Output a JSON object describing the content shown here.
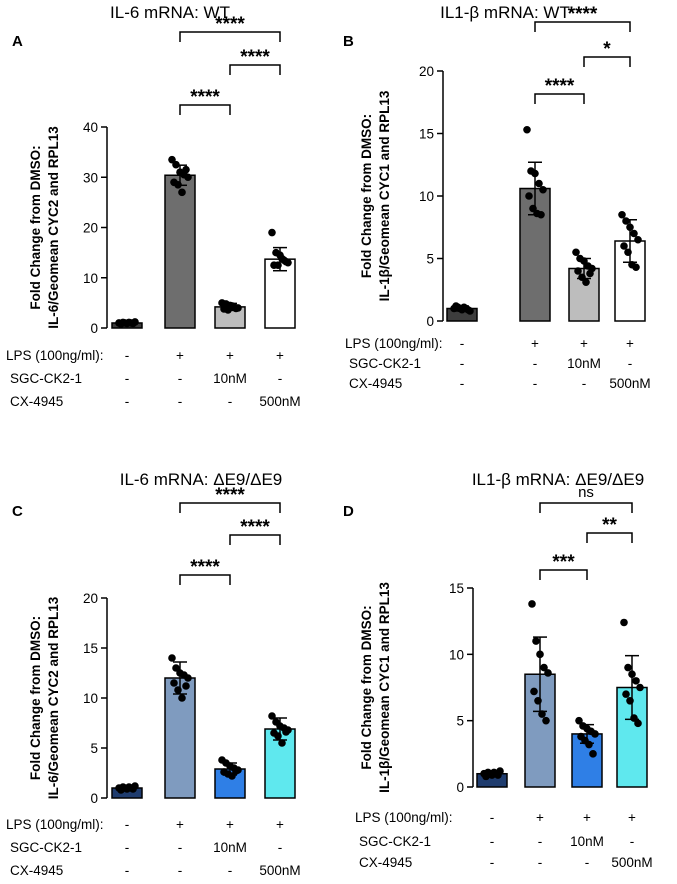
{
  "chart_data": [
    {
      "panel": "A",
      "type": "bar",
      "title": "IL-6 mRNA: WT",
      "ylabel_line1": "Fold Change from DMSO:",
      "ylabel_line2": "IL-6/Geomean CYC2 and RPL13",
      "ylim": [
        0,
        40
      ],
      "yticks": [
        0,
        10,
        20,
        30,
        40
      ],
      "values": [
        1.0,
        30.4,
        4.2,
        13.7
      ],
      "errors": [
        0.3,
        2.0,
        0.7,
        2.3
      ],
      "colors": [
        "#3d3d3d",
        "#6e6e6e",
        "#bdbdbd",
        "#ffffff"
      ],
      "points": [
        [
          1.0,
          1.1,
          0.9,
          1.0,
          1.2,
          0.8,
          1.0,
          1.1,
          0.9
        ],
        [
          33.5,
          32.5,
          31.0,
          30.5,
          30.0,
          29.0,
          28.5,
          27.0,
          31.5
        ],
        [
          5.0,
          4.8,
          4.5,
          4.2,
          4.0,
          3.8,
          3.6,
          4.4,
          3.9
        ],
        [
          19.0,
          15.0,
          14.5,
          13.5,
          13.0,
          12.5,
          12.5,
          13.8,
          13.2
        ]
      ],
      "significance": [
        {
          "from": 1,
          "to": 2,
          "label": "****"
        },
        {
          "from": 2,
          "to": 3,
          "label": "****"
        },
        {
          "from": 1,
          "to": 3,
          "label": "****"
        }
      ],
      "conditions": [
        {
          "label": "LPS (100ng/ml):",
          "values": [
            "-",
            "+",
            "+",
            "+"
          ]
        },
        {
          "label": "SGC-CK2-1",
          "values": [
            "-",
            "-",
            "10nM",
            "-"
          ]
        },
        {
          "label": "CX-4945",
          "values": [
            "-",
            "-",
            "-",
            "500nM"
          ]
        }
      ]
    },
    {
      "panel": "B",
      "type": "bar",
      "title": "IL1-β mRNA: WT",
      "ylabel_line1": "Fold Change from DMSO:",
      "ylabel_line2": "IL-1β/Geomean CYC1 and RPL13",
      "ylim": [
        0,
        20
      ],
      "yticks": [
        0,
        5,
        10,
        15,
        20
      ],
      "values": [
        1.0,
        10.6,
        4.2,
        6.4
      ],
      "errors": [
        0.2,
        2.1,
        0.8,
        1.7
      ],
      "colors": [
        "#3d3d3d",
        "#6e6e6e",
        "#bdbdbd",
        "#ffffff"
      ],
      "points": [
        [
          1.0,
          1.1,
          0.9,
          1.0,
          0.8,
          1.2,
          1.0,
          1.1,
          0.9
        ],
        [
          15.3,
          12.0,
          11.8,
          11.0,
          10.5,
          10.0,
          9.0,
          8.6,
          8.5
        ],
        [
          5.5,
          5.0,
          4.8,
          4.4,
          4.2,
          4.0,
          3.5,
          3.1,
          3.8
        ],
        [
          8.5,
          8.0,
          7.5,
          7.0,
          6.5,
          6.0,
          5.5,
          4.5,
          4.3
        ]
      ],
      "significance": [
        {
          "from": 1,
          "to": 2,
          "label": "****"
        },
        {
          "from": 2,
          "to": 3,
          "label": "*"
        },
        {
          "from": 1,
          "to": 3,
          "label": "****"
        }
      ],
      "conditions": [
        {
          "label": "LPS (100ng/ml):",
          "values": [
            "-",
            "+",
            "+",
            "+"
          ]
        },
        {
          "label": "SGC-CK2-1",
          "values": [
            "-",
            "-",
            "10nM",
            "-"
          ]
        },
        {
          "label": "CX-4945",
          "values": [
            "-",
            "-",
            "-",
            "500nM"
          ]
        }
      ]
    },
    {
      "panel": "C",
      "type": "bar",
      "title": "IL-6 mRNA: ΔE9/ΔE9",
      "ylabel_line1": "Fold Change from DMSO:",
      "ylabel_line2": "IL-6/Geomean CYC2 and RPL13",
      "ylim": [
        0,
        20
      ],
      "yticks": [
        0,
        5,
        10,
        15,
        20
      ],
      "values": [
        1.0,
        12.0,
        2.9,
        6.9
      ],
      "errors": [
        0.2,
        1.6,
        0.6,
        1.1
      ],
      "colors": [
        "#1f3c6e",
        "#7f9bbf",
        "#2f7fe6",
        "#5fe8ee"
      ],
      "points": [
        [
          1.0,
          1.1,
          0.9,
          1.0,
          1.2,
          0.8,
          1.0,
          1.1,
          0.9
        ],
        [
          14.0,
          13.0,
          12.5,
          12.3,
          12.0,
          11.5,
          10.8,
          10.0,
          11.2
        ],
        [
          3.8,
          3.5,
          3.2,
          3.0,
          2.8,
          2.6,
          2.4,
          2.2,
          2.7
        ],
        [
          8.2,
          7.6,
          7.2,
          7.0,
          6.8,
          6.5,
          6.2,
          5.5,
          6.6
        ]
      ],
      "significance": [
        {
          "from": 1,
          "to": 2,
          "label": "****"
        },
        {
          "from": 2,
          "to": 3,
          "label": "****"
        },
        {
          "from": 1,
          "to": 3,
          "label": "****"
        }
      ],
      "conditions": [
        {
          "label": "LPS (100ng/ml):",
          "values": [
            "-",
            "+",
            "+",
            "+"
          ]
        },
        {
          "label": "SGC-CK2-1",
          "values": [
            "-",
            "-",
            "10nM",
            "-"
          ]
        },
        {
          "label": "CX-4945",
          "values": [
            "-",
            "-",
            "-",
            "500nM"
          ]
        }
      ]
    },
    {
      "panel": "D",
      "type": "bar",
      "title": "IL1-β mRNA: ΔE9/ΔE9",
      "ylabel_line1": "Fold Change from DMSO:",
      "ylabel_line2": "IL-1β/Geomean CYC1 and RPL13",
      "ylim": [
        0,
        15
      ],
      "yticks": [
        0,
        5,
        10,
        15
      ],
      "values": [
        1.0,
        8.5,
        4.0,
        7.5
      ],
      "errors": [
        0.2,
        2.8,
        0.7,
        2.4
      ],
      "colors": [
        "#1f3c6e",
        "#7f9bbf",
        "#2f7fe6",
        "#5fe8ee"
      ],
      "points": [
        [
          1.0,
          1.1,
          0.9,
          1.0,
          1.2,
          0.8,
          1.0,
          1.1,
          0.9
        ],
        [
          13.8,
          11.0,
          10.0,
          9.0,
          8.6,
          7.2,
          6.5,
          5.5,
          5.0
        ],
        [
          5.0,
          4.6,
          4.4,
          4.2,
          4.0,
          3.8,
          3.5,
          3.2,
          2.5
        ],
        [
          12.4,
          9.0,
          8.5,
          8.0,
          7.5,
          7.0,
          6.5,
          5.2,
          4.8
        ]
      ],
      "significance": [
        {
          "from": 1,
          "to": 2,
          "label": "***"
        },
        {
          "from": 2,
          "to": 3,
          "label": "**"
        },
        {
          "from": 1,
          "to": 3,
          "label": "ns"
        }
      ],
      "conditions": [
        {
          "label": "LPS (100ng/ml):",
          "values": [
            "-",
            "+",
            "+",
            "+"
          ]
        },
        {
          "label": "SGC-CK2-1",
          "values": [
            "-",
            "-",
            "10nM",
            "-"
          ]
        },
        {
          "label": "CX-4945",
          "values": [
            "-",
            "-",
            "-",
            "500nM"
          ]
        }
      ]
    }
  ]
}
